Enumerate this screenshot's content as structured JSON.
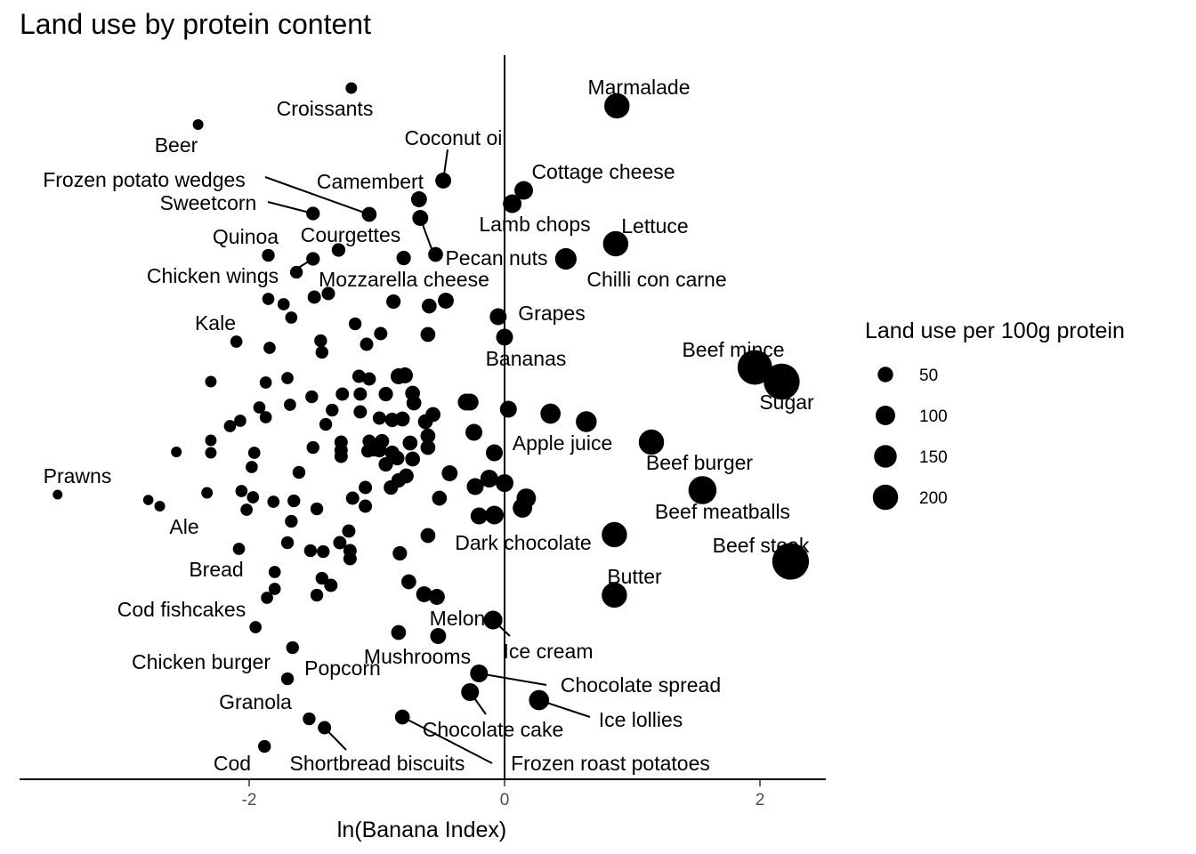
{
  "chart_data": {
    "type": "scatter",
    "title": "Land use by protein content",
    "xlabel": "ln(Banana Index)",
    "ylabel": "",
    "xlim": [
      -3.8,
      2.52
    ],
    "x_ticks": [
      {
        "value": -2,
        "label": "-2"
      },
      {
        "value": 0,
        "label": "0"
      },
      {
        "value": 2,
        "label": "2"
      }
    ],
    "y_axis_visible": false,
    "grid": false,
    "vertical_reference_line": 0,
    "legend": {
      "title": "Land use per 100g protein",
      "placement": "right",
      "entries": [
        {
          "label": "50",
          "value": 50
        },
        {
          "label": "100",
          "value": 100
        },
        {
          "label": "150",
          "value": 150
        },
        {
          "label": "200",
          "value": 200
        }
      ]
    },
    "labeled_points": [
      {
        "label": "Croissants",
        "x": -1.2,
        "y": 99,
        "size": 8
      },
      {
        "label": "Beer",
        "x": -2.4,
        "y": 140,
        "size": 6
      },
      {
        "label": "Marmalade",
        "x": 0.88,
        "y": 119,
        "size": 92
      },
      {
        "label": "Coconut oil",
        "x": -0.48,
        "y": 203,
        "size": 25
      },
      {
        "label": "Frozen potato wedges",
        "x": -1.06,
        "y": 241,
        "size": 20
      },
      {
        "label": "Camembert",
        "x": -0.67,
        "y": 224,
        "size": 25
      },
      {
        "label": "Cottage cheese",
        "x": 0.15,
        "y": 214,
        "size": 40
      },
      {
        "label": "Sweetcorn",
        "x": -1.5,
        "y": 240,
        "size": 15
      },
      {
        "label": "Pecan nuts",
        "x": -0.66,
        "y": 245,
        "size": 25
      },
      {
        "label": "Lamb chops",
        "x": 0.06,
        "y": 229,
        "size": 40
      },
      {
        "label": "Lettuce",
        "x": 0.87,
        "y": 274,
        "size": 92
      },
      {
        "label": "Quinoa",
        "x": -1.85,
        "y": 287,
        "size": 12
      },
      {
        "label": "Courgettes",
        "x": -1.3,
        "y": 281,
        "size": 15
      },
      {
        "label": "Chilli con carne",
        "x": 0.48,
        "y": 291,
        "size": 60
      },
      {
        "label": "Chicken wings",
        "x": -1.5,
        "y": 291,
        "size": 15
      },
      {
        "label": "Mozzarella cheese",
        "x": -0.46,
        "y": 338,
        "size": 25
      },
      {
        "label": "Grapes",
        "x": -0.05,
        "y": 356,
        "size": 30
      },
      {
        "label": "Kale",
        "x": -2.1,
        "y": 384,
        "size": 10
      },
      {
        "label": "Bananas",
        "x": 0.0,
        "y": 379,
        "size": 30
      },
      {
        "label": "Beef mince",
        "x": 1.96,
        "y": 413,
        "size": 200
      },
      {
        "label": "Sugar",
        "x": 2.17,
        "y": 429,
        "size": 220
      },
      {
        "label": "Apple juice",
        "x": 1.15,
        "y": 497,
        "size": 92
      },
      {
        "label": "Beef burger",
        "x": 1.55,
        "y": 551,
        "size": 120
      },
      {
        "label": "Prawns",
        "x": -3.5,
        "y": 556,
        "size": 4
      },
      {
        "label": "Ale",
        "x": -2.7,
        "y": 569,
        "size": 6
      },
      {
        "label": "Beef meatballs",
        "x": 0.86,
        "y": 601,
        "size": 92
      },
      {
        "label": "Dark chocolate",
        "x": -0.08,
        "y": 579,
        "size": 40
      },
      {
        "label": "Beef steak",
        "x": 2.24,
        "y": 631,
        "size": 230
      },
      {
        "label": "Bread",
        "x": -1.8,
        "y": 643,
        "size": 10
      },
      {
        "label": "Butter",
        "x": 0.86,
        "y": 669,
        "size": 92
      },
      {
        "label": "Cod fishcakes",
        "x": -1.95,
        "y": 705,
        "size": 10
      },
      {
        "label": "Melon",
        "x": -0.09,
        "y": 697,
        "size": 40
      },
      {
        "label": "Ice cream",
        "x": -0.09,
        "y": 697,
        "size": 40
      },
      {
        "label": "Mushrooms",
        "x": -0.52,
        "y": 715,
        "size": 25
      },
      {
        "label": "Chicken burger",
        "x": -1.66,
        "y": 728,
        "size": 12
      },
      {
        "label": "Popcorn",
        "x": -1.7,
        "y": 763,
        "size": 12
      },
      {
        "label": "Chocolate spread",
        "x": -0.2,
        "y": 757,
        "size": 35
      },
      {
        "label": "Ice lollies",
        "x": 0.27,
        "y": 787,
        "size": 50
      },
      {
        "label": "Chocolate cake",
        "x": -0.27,
        "y": 778,
        "size": 35
      },
      {
        "label": "Granola",
        "x": -1.53,
        "y": 808,
        "size": 12
      },
      {
        "label": "Frozen roast potatoes",
        "x": -0.8,
        "y": 806,
        "size": 20
      },
      {
        "label": "Shortbread biscuits",
        "x": -1.41,
        "y": 818,
        "size": 14
      },
      {
        "label": "Cod",
        "x": -1.88,
        "y": 839,
        "size": 12
      }
    ],
    "unlabeled_points": [
      {
        "x": -1.85,
        "y": 336,
        "size": 10
      },
      {
        "x": -1.73,
        "y": 342,
        "size": 10
      },
      {
        "x": -1.67,
        "y": 357,
        "size": 10
      },
      {
        "x": -1.49,
        "y": 334,
        "size": 14
      },
      {
        "x": -1.38,
        "y": 330,
        "size": 14
      },
      {
        "x": -0.87,
        "y": 339,
        "size": 18
      },
      {
        "x": -0.59,
        "y": 344,
        "size": 20
      },
      {
        "x": -1.17,
        "y": 364,
        "size": 12
      },
      {
        "x": -0.97,
        "y": 375,
        "size": 14
      },
      {
        "x": -0.6,
        "y": 376,
        "size": 20
      },
      {
        "x": -1.44,
        "y": 383,
        "size": 12
      },
      {
        "x": -1.43,
        "y": 396,
        "size": 12
      },
      {
        "x": -1.08,
        "y": 387,
        "size": 14
      },
      {
        "x": -1.84,
        "y": 391,
        "size": 10
      },
      {
        "x": -0.79,
        "y": 290,
        "size": 18
      },
      {
        "x": -1.63,
        "y": 306,
        "size": 12
      },
      {
        "x": -0.54,
        "y": 286,
        "size": 20
      },
      {
        "x": -2.3,
        "y": 429,
        "size": 8
      },
      {
        "x": -1.87,
        "y": 430,
        "size": 10
      },
      {
        "x": -1.7,
        "y": 425,
        "size": 10
      },
      {
        "x": -1.14,
        "y": 423,
        "size": 14
      },
      {
        "x": -1.06,
        "y": 426,
        "size": 14
      },
      {
        "x": -0.83,
        "y": 423,
        "size": 25
      },
      {
        "x": -0.78,
        "y": 422,
        "size": 25
      },
      {
        "x": -1.27,
        "y": 443,
        "size": 14
      },
      {
        "x": -1.51,
        "y": 446,
        "size": 12
      },
      {
        "x": -1.68,
        "y": 455,
        "size": 10
      },
      {
        "x": -1.13,
        "y": 443,
        "size": 14
      },
      {
        "x": -0.93,
        "y": 443,
        "size": 18
      },
      {
        "x": -0.72,
        "y": 442,
        "size": 20
      },
      {
        "x": -0.3,
        "y": 452,
        "size": 30
      },
      {
        "x": -0.27,
        "y": 452,
        "size": 30
      },
      {
        "x": -1.92,
        "y": 458,
        "size": 10
      },
      {
        "x": -1.35,
        "y": 461,
        "size": 12
      },
      {
        "x": -1.13,
        "y": 463,
        "size": 14
      },
      {
        "x": -0.71,
        "y": 453,
        "size": 20
      },
      {
        "x": -0.56,
        "y": 466,
        "size": 20
      },
      {
        "x": 0.03,
        "y": 460,
        "size": 30
      },
      {
        "x": 0.36,
        "y": 465,
        "size": 50
      },
      {
        "x": 0.64,
        "y": 474,
        "size": 55
      },
      {
        "x": -2.07,
        "y": 473,
        "size": 10
      },
      {
        "x": -2.15,
        "y": 479,
        "size": 10
      },
      {
        "x": -1.87,
        "y": 469,
        "size": 10
      },
      {
        "x": -1.4,
        "y": 477,
        "size": 12
      },
      {
        "x": -0.98,
        "y": 470,
        "size": 14
      },
      {
        "x": -0.88,
        "y": 472,
        "size": 18
      },
      {
        "x": -0.8,
        "y": 471,
        "size": 20
      },
      {
        "x": -0.62,
        "y": 474,
        "size": 20
      },
      {
        "x": -2.3,
        "y": 495,
        "size": 8
      },
      {
        "x": -2.57,
        "y": 508,
        "size": 6
      },
      {
        "x": -2.3,
        "y": 509,
        "size": 8
      },
      {
        "x": -1.96,
        "y": 509,
        "size": 10
      },
      {
        "x": -1.5,
        "y": 503,
        "size": 12
      },
      {
        "x": -1.28,
        "y": 497,
        "size": 14
      },
      {
        "x": -1.28,
        "y": 506,
        "size": 14
      },
      {
        "x": -1.28,
        "y": 513,
        "size": 14
      },
      {
        "x": -1.06,
        "y": 496,
        "size": 14
      },
      {
        "x": -0.96,
        "y": 496,
        "size": 18
      },
      {
        "x": -1.07,
        "y": 507,
        "size": 14
      },
      {
        "x": -1.02,
        "y": 505,
        "size": 18
      },
      {
        "x": -0.98,
        "y": 506,
        "size": 18
      },
      {
        "x": -0.6,
        "y": 490,
        "size": 20
      },
      {
        "x": -0.6,
        "y": 503,
        "size": 20
      },
      {
        "x": -0.24,
        "y": 486,
        "size": 30
      },
      {
        "x": -0.88,
        "y": 509,
        "size": 18
      },
      {
        "x": -0.74,
        "y": 498,
        "size": 20
      },
      {
        "x": -0.72,
        "y": 516,
        "size": 20
      },
      {
        "x": -0.93,
        "y": 522,
        "size": 18
      },
      {
        "x": -0.84,
        "y": 515,
        "size": 18
      },
      {
        "x": -0.08,
        "y": 509,
        "size": 30
      },
      {
        "x": -1.98,
        "y": 525,
        "size": 10
      },
      {
        "x": -1.61,
        "y": 531,
        "size": 12
      },
      {
        "x": -0.43,
        "y": 532,
        "size": 25
      },
      {
        "x": -0.83,
        "y": 540,
        "size": 18
      },
      {
        "x": -0.77,
        "y": 535,
        "size": 20
      },
      {
        "x": -0.89,
        "y": 548,
        "size": 18
      },
      {
        "x": -2.33,
        "y": 554,
        "size": 8
      },
      {
        "x": -2.06,
        "y": 552,
        "size": 10
      },
      {
        "x": -1.97,
        "y": 559,
        "size": 10
      },
      {
        "x": -1.09,
        "y": 548,
        "size": 14
      },
      {
        "x": -1.19,
        "y": 560,
        "size": 14
      },
      {
        "x": -0.23,
        "y": 547,
        "size": 30
      },
      {
        "x": -0.12,
        "y": 538,
        "size": 35
      },
      {
        "x": 0.0,
        "y": 543,
        "size": 35
      },
      {
        "x": 0.17,
        "y": 560,
        "size": 45
      },
      {
        "x": 0.14,
        "y": 571,
        "size": 45
      },
      {
        "x": -2.79,
        "y": 562,
        "size": 5
      },
      {
        "x": -2.02,
        "y": 573,
        "size": 10
      },
      {
        "x": -1.81,
        "y": 564,
        "size": 10
      },
      {
        "x": -1.65,
        "y": 563,
        "size": 12
      },
      {
        "x": -1.47,
        "y": 572,
        "size": 12
      },
      {
        "x": -1.09,
        "y": 569,
        "size": 14
      },
      {
        "x": -0.51,
        "y": 560,
        "size": 20
      },
      {
        "x": -0.2,
        "y": 580,
        "size": 30
      },
      {
        "x": -1.67,
        "y": 586,
        "size": 12
      },
      {
        "x": -1.22,
        "y": 597,
        "size": 14
      },
      {
        "x": -0.6,
        "y": 602,
        "size": 20
      },
      {
        "x": -1.7,
        "y": 610,
        "size": 12
      },
      {
        "x": -1.29,
        "y": 610,
        "size": 14
      },
      {
        "x": -1.52,
        "y": 619,
        "size": 12
      },
      {
        "x": -1.42,
        "y": 620,
        "size": 12
      },
      {
        "x": -1.21,
        "y": 619,
        "size": 14
      },
      {
        "x": -1.21,
        "y": 628,
        "size": 14
      },
      {
        "x": -2.08,
        "y": 617,
        "size": 10
      },
      {
        "x": -0.82,
        "y": 622,
        "size": 18
      },
      {
        "x": -1.43,
        "y": 650,
        "size": 12
      },
      {
        "x": -1.8,
        "y": 662,
        "size": 10
      },
      {
        "x": -1.86,
        "y": 672,
        "size": 10
      },
      {
        "x": -1.47,
        "y": 669,
        "size": 12
      },
      {
        "x": -1.36,
        "y": 658,
        "size": 14
      },
      {
        "x": -0.75,
        "y": 654,
        "size": 20
      },
      {
        "x": -0.63,
        "y": 668,
        "size": 25
      },
      {
        "x": -0.53,
        "y": 671,
        "size": 25
      },
      {
        "x": -0.83,
        "y": 711,
        "size": 20
      }
    ]
  }
}
